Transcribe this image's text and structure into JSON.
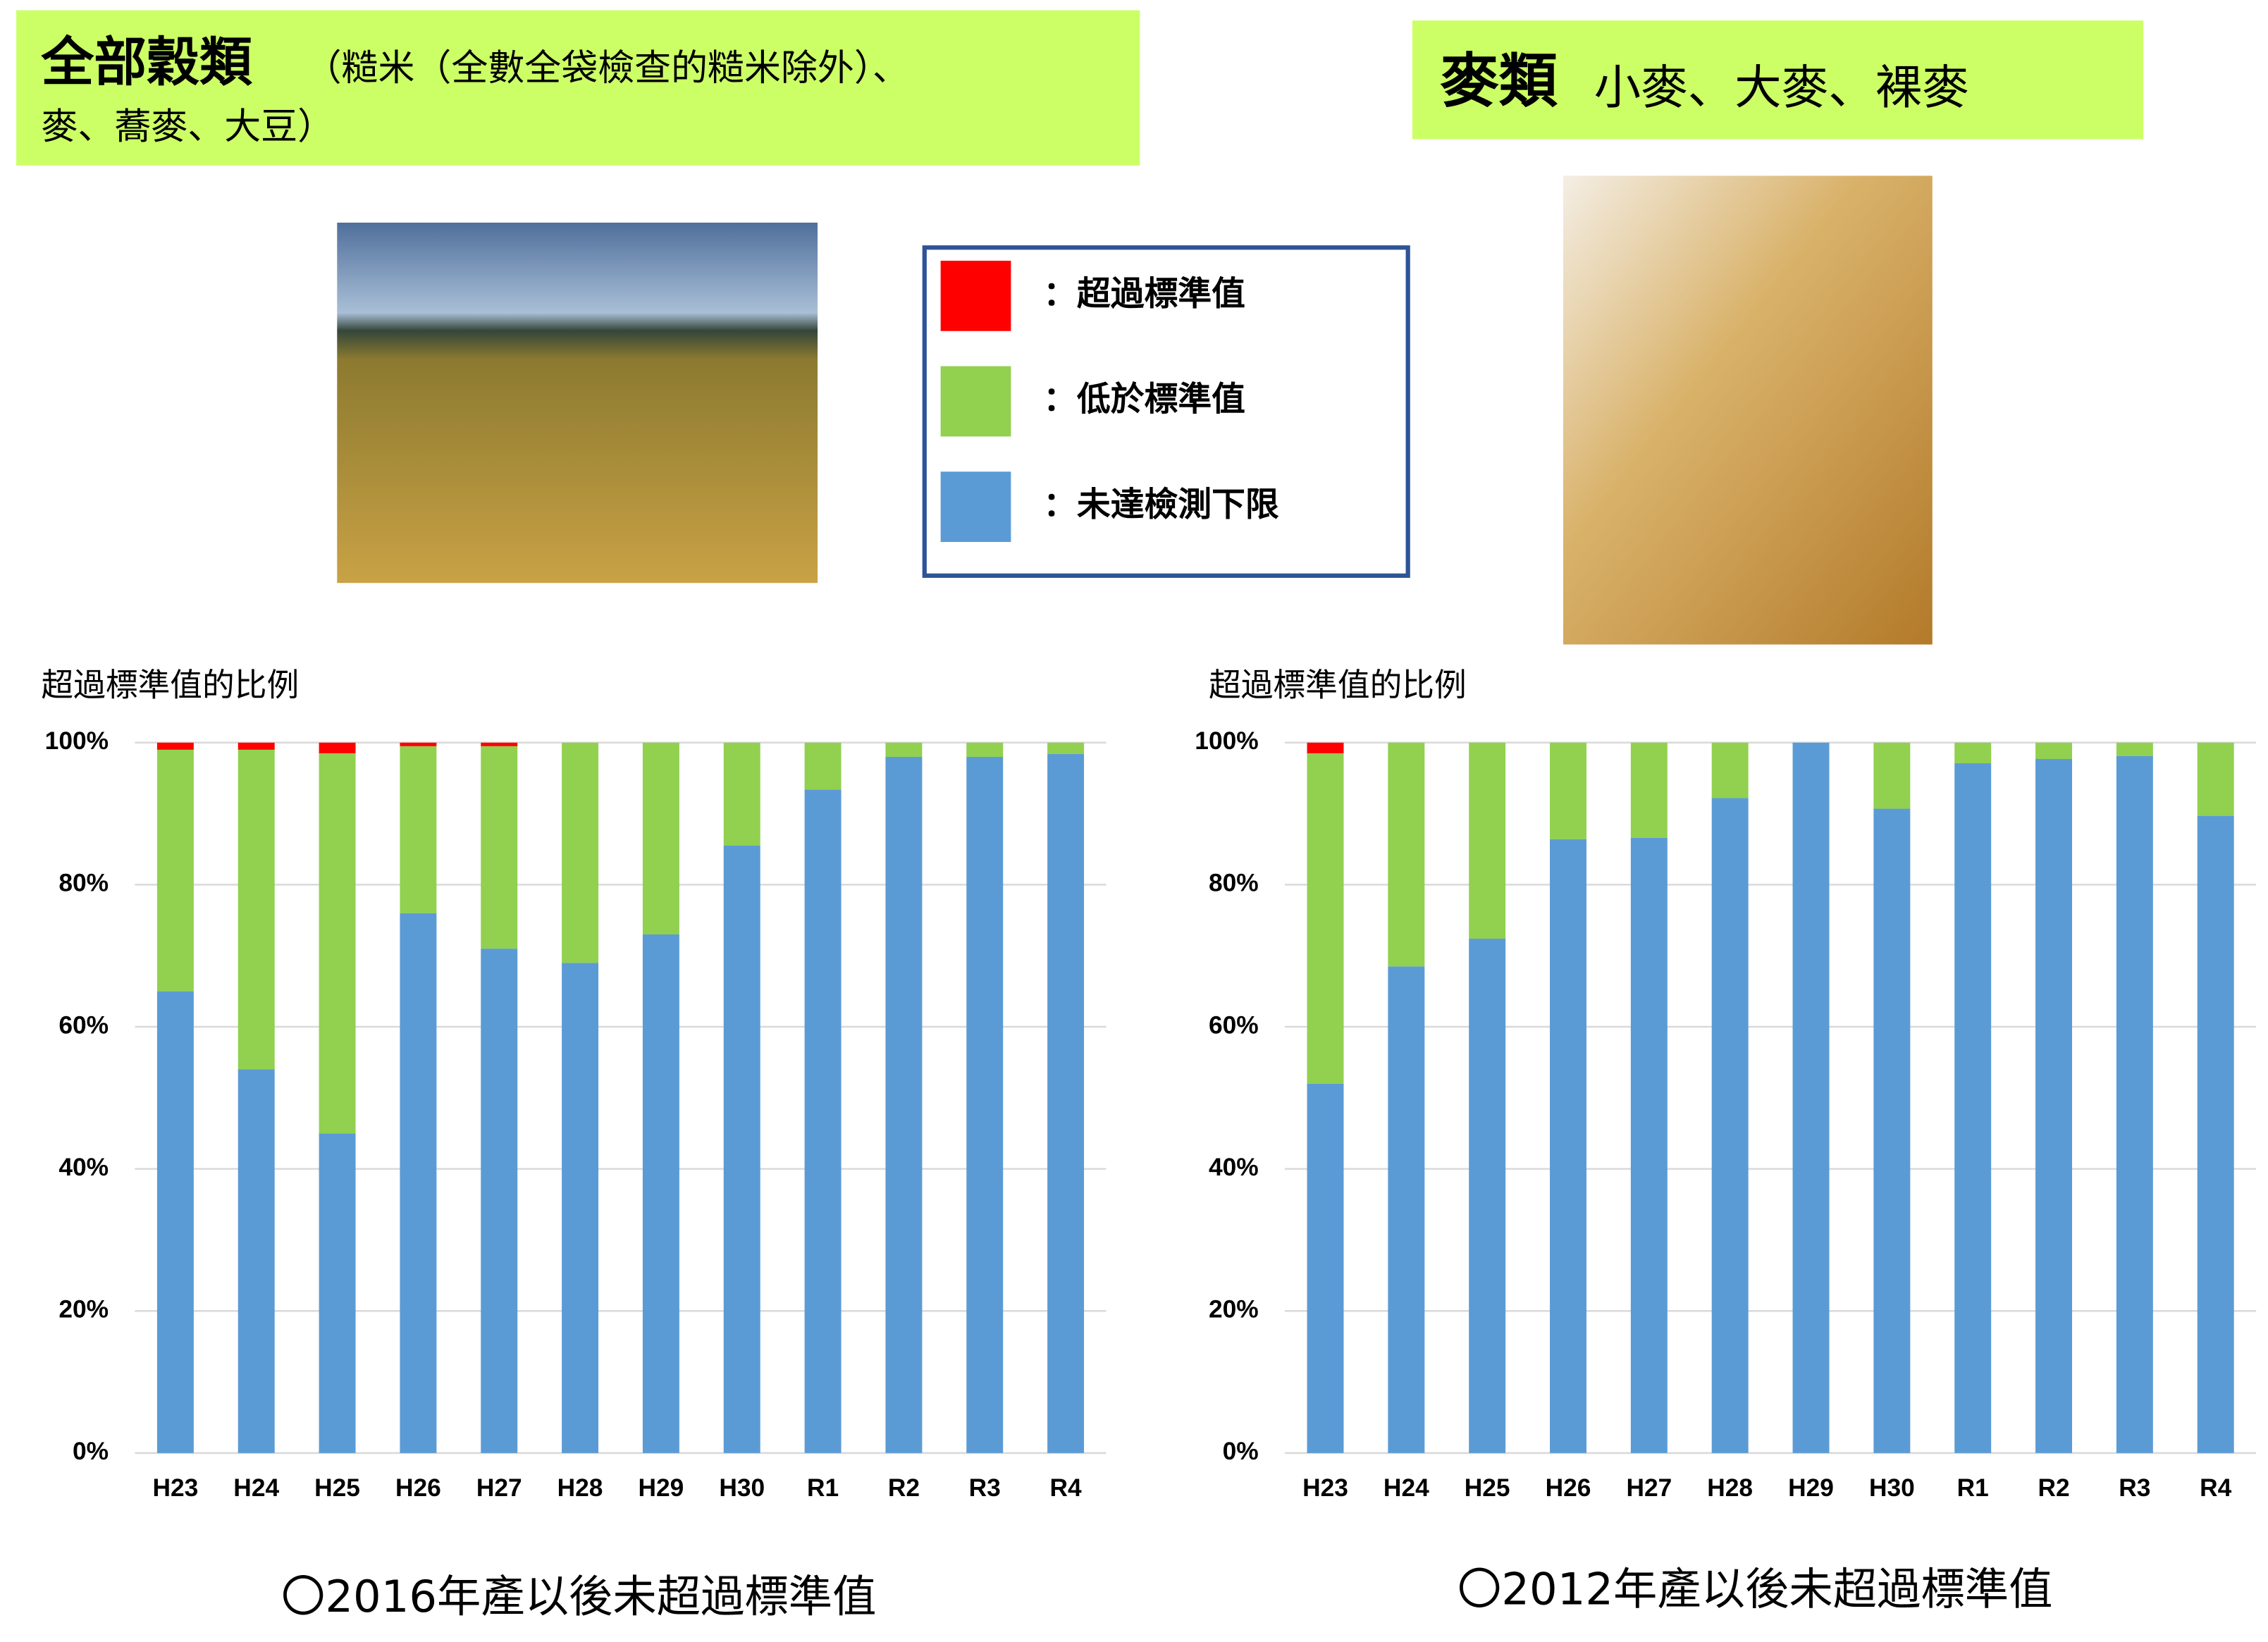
{
  "header": {
    "left": {
      "title": "全部穀類",
      "subtitle": "（糙米（全數全袋檢查的糙米除外）、",
      "subtitle2": "麥、蕎麥、大豆）"
    },
    "right": {
      "title": "麥類",
      "subtitle": "小麥、大麥、裸麥"
    }
  },
  "legend": [
    {
      "label": "：超過標準值",
      "color": "#ff0000"
    },
    {
      "label": "：低於標準值",
      "color": "#92d050"
    },
    {
      "label": "：未達檢測下限",
      "color": "#5b9bd5"
    }
  ],
  "chart_data": [
    {
      "type": "bar",
      "stacked": true,
      "ylabel": "超過標準值的比例",
      "categories": [
        "H23",
        "H24",
        "H25",
        "H26",
        "H27",
        "H28",
        "H29",
        "H30",
        "R1",
        "R2",
        "R3",
        "R4"
      ],
      "series": [
        {
          "color": "#5b9bd5",
          "values": [
            65,
            54,
            45,
            76,
            71,
            69,
            73,
            85.5,
            93.4,
            98,
            98,
            98.4
          ]
        },
        {
          "color": "#92d050",
          "values": [
            34,
            45,
            53.5,
            23.5,
            28.5,
            31,
            27,
            14.5,
            6.6,
            2,
            2,
            1.6
          ]
        },
        {
          "color": "#ff0000",
          "values": [
            1,
            1,
            1.5,
            0.5,
            0.5,
            0,
            0,
            0,
            0,
            0,
            0,
            0
          ]
        }
      ],
      "ylim": [
        0,
        100
      ],
      "yticks": [
        {
          "value": 0,
          "label": "0%"
        },
        {
          "value": 20,
          "label": "20%"
        },
        {
          "value": 40,
          "label": "40%"
        },
        {
          "value": 60,
          "label": "60%"
        },
        {
          "value": 80,
          "label": "80%"
        },
        {
          "value": 100,
          "label": "100%"
        }
      ],
      "grid": true,
      "note": "〇2016年產以後未超過標準值"
    },
    {
      "type": "bar",
      "stacked": true,
      "ylabel": "超過標準值的比例",
      "categories": [
        "H23",
        "H24",
        "H25",
        "H26",
        "H27",
        "H28",
        "H29",
        "H30",
        "R1",
        "R2",
        "R3",
        "R4"
      ],
      "series": [
        {
          "color": "#5b9bd5",
          "values": [
            52,
            68.5,
            72.4,
            86.4,
            86.6,
            92.2,
            100,
            90.7,
            97.1,
            97.7,
            98.1,
            89.7
          ]
        },
        {
          "color": "#92d050",
          "values": [
            46.5,
            31.5,
            27.6,
            13.6,
            13.4,
            7.8,
            0,
            9.3,
            2.9,
            2.3,
            1.9,
            10.3
          ]
        },
        {
          "color": "#ff0000",
          "values": [
            1.5,
            0,
            0,
            0,
            0,
            0,
            0,
            0,
            0,
            0,
            0,
            0
          ]
        }
      ],
      "ylim": [
        0,
        100
      ],
      "yticks": [
        {
          "value": 0,
          "label": "0%"
        },
        {
          "value": 20,
          "label": "20%"
        },
        {
          "value": 40,
          "label": "40%"
        },
        {
          "value": 60,
          "label": "60%"
        },
        {
          "value": 80,
          "label": "80%"
        },
        {
          "value": 100,
          "label": "100%"
        }
      ],
      "grid": true,
      "note": "〇2012年產以後未超過標準值"
    }
  ]
}
